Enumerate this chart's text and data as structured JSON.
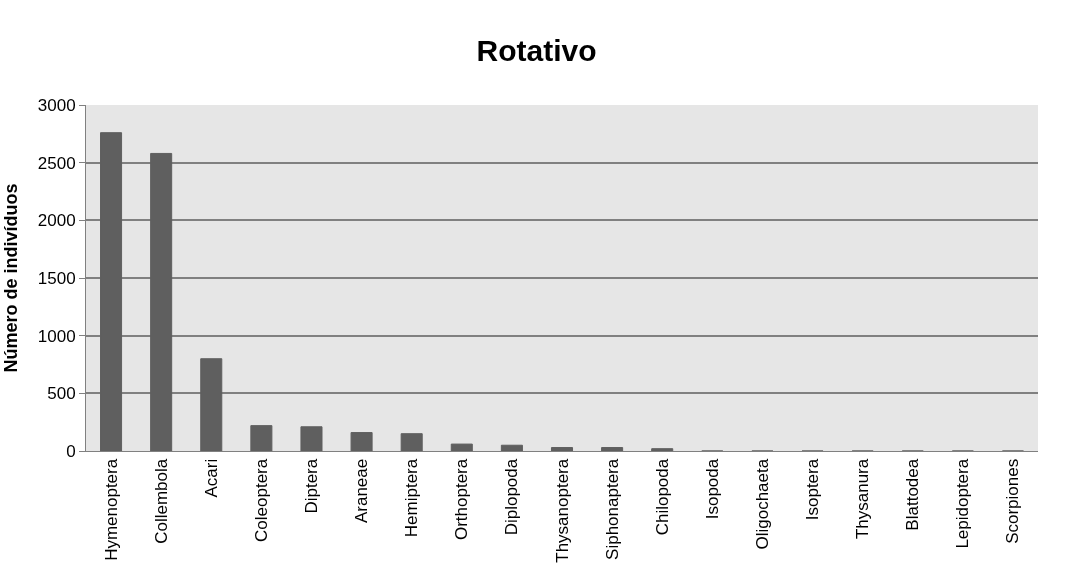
{
  "chart_data": {
    "type": "bar",
    "title": "Rotativo",
    "ylabel": "Número de indivíduos",
    "categories": [
      "Hymenoptera",
      "Collembola",
      "Acari",
      "Coleoptera",
      "Diptera",
      "Araneae",
      "Hemiptera",
      "Orthoptera",
      "Diplopoda",
      "Thysanoptera",
      "Siphonaptera",
      "Chilopoda",
      "Isopoda",
      "Oligochaeta",
      "Isoptera",
      "Thysanura",
      "Blattodea",
      "Lepidoptera",
      "Scorpiones"
    ],
    "values": [
      2760,
      2580,
      800,
      220,
      210,
      160,
      150,
      60,
      50,
      30,
      30,
      20,
      0,
      0,
      0,
      0,
      0,
      0,
      0
    ],
    "color": "#5f5f5f",
    "ylim": [
      0,
      3000
    ],
    "yticks": [
      0,
      500,
      1000,
      1500,
      2000,
      2500,
      3000
    ],
    "grid": "y"
  }
}
